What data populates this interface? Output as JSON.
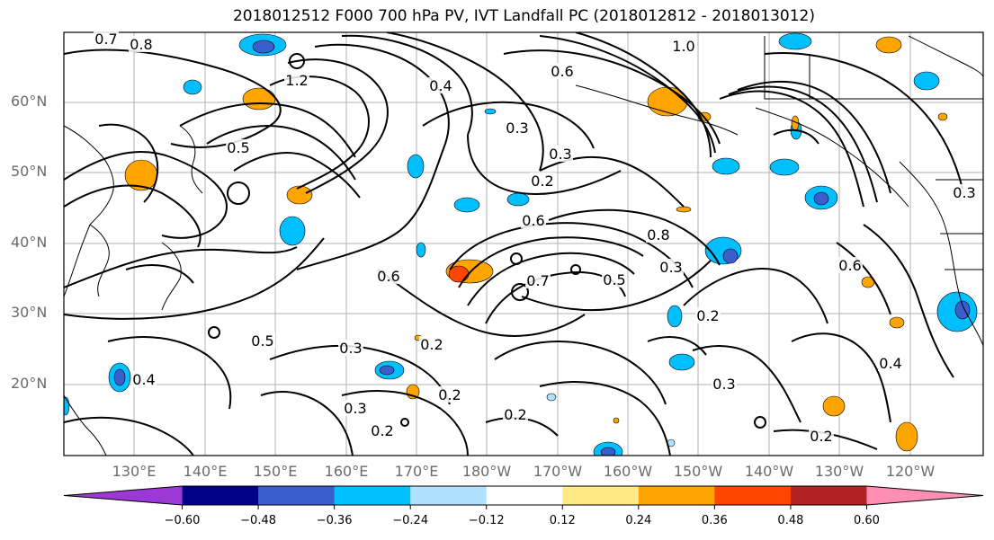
{
  "title": "2018012512 F000 700 hPa PV, IVT Landfall PC (2018012812 - 2018013012)",
  "latitudes": [
    "60°N",
    "50°N",
    "40°N",
    "30°N",
    "20°N"
  ],
  "longitudes": [
    "130°E",
    "140°E",
    "150°E",
    "160°E",
    "170°E",
    "180°W",
    "170°W",
    "160°W",
    "150°W",
    "140°W",
    "130°W",
    "120°W"
  ],
  "contour_labels": [
    "0.7",
    "0.8",
    "1.2",
    "1.0",
    "0.4",
    "0.6",
    "0.3",
    "0.5",
    "0.2",
    "0.3",
    "0.6",
    "0.8",
    "0.7",
    "0.5",
    "0.3",
    "0.5",
    "0.6",
    "0.2",
    "0.3",
    "0.2",
    "0.3",
    "0.2",
    "0.4",
    "0.2",
    "0.4",
    "0.3",
    "0.6",
    "0.2",
    "0.2",
    "0.3"
  ],
  "colorbar": {
    "ticks": [
      "−0.60",
      "−0.48",
      "−0.36",
      "−0.24",
      "−0.12",
      "0.12",
      "0.24",
      "0.36",
      "0.48",
      "0.60"
    ],
    "colors": [
      "#9b38d6",
      "#00008a",
      "#3a5fcd",
      "#00bfff",
      "#b0e2ff",
      "#ffffff",
      "#ffe985",
      "#ffa500",
      "#ff4500",
      "#b22222",
      "#ff8eb4"
    ]
  }
}
